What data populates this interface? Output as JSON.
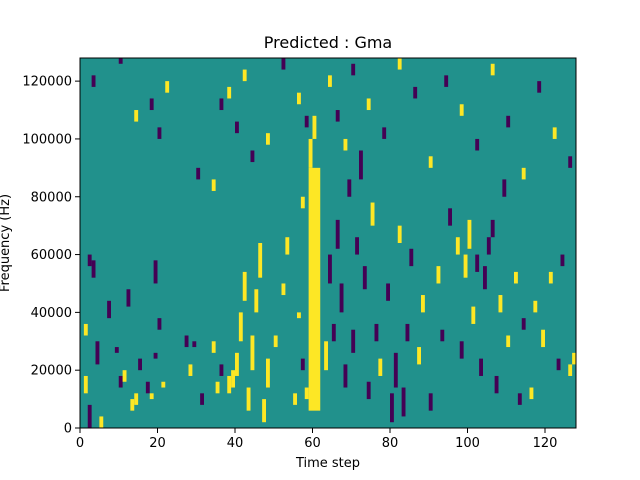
{
  "chart_data": {
    "type": "heatmap",
    "title": "Predicted : Gma",
    "xlabel": "Time step",
    "ylabel": "Frequency (Hz)",
    "xlim": [
      0,
      128
    ],
    "ylim": [
      0,
      128000
    ],
    "xticks": [
      0,
      20,
      40,
      60,
      80,
      100,
      120
    ],
    "yticks": [
      0,
      20000,
      40000,
      60000,
      80000,
      100000,
      120000
    ],
    "xtick_labels": [
      "0",
      "20",
      "40",
      "60",
      "80",
      "100",
      "120"
    ],
    "ytick_labels": [
      "0",
      "20000",
      "40000",
      "60000",
      "80000",
      "100000",
      "120000"
    ],
    "grid": false,
    "legend": "none",
    "colors": {
      "background_value": "#21918c",
      "high_value": "#fde725",
      "low_value": "#440154"
    },
    "time_steps": 128,
    "freq_bins": 128,
    "band_structure": {
      "strong_high_band_time": [
        59,
        62
      ],
      "strong_high_band_freq_range": [
        6000,
        90000
      ],
      "dense_low_cluster_time": [
        64,
        84
      ],
      "dense_high_cluster_time": [
        36,
        48
      ]
    },
    "nonbackground_cells": [
      {
        "t": 2,
        "f_range": [
          0,
          8000
        ],
        "v": "low"
      },
      {
        "t": 5,
        "f_range": [
          0,
          4000
        ],
        "v": "high"
      },
      {
        "t": 1,
        "f_range": [
          12000,
          18000
        ],
        "v": "high"
      },
      {
        "t": 4,
        "f_range": [
          22000,
          30000
        ],
        "v": "low"
      },
      {
        "t": 1,
        "f_range": [
          32000,
          36000
        ],
        "v": "high"
      },
      {
        "t": 3,
        "f_range": [
          52000,
          58000
        ],
        "v": "low"
      },
      {
        "t": 7,
        "f_range": [
          38000,
          44000
        ],
        "v": "low"
      },
      {
        "t": 2,
        "f_range": [
          56000,
          60000
        ],
        "v": "low"
      },
      {
        "t": 9,
        "f_range": [
          26000,
          28000
        ],
        "v": "low"
      },
      {
        "t": 10,
        "f_range": [
          14000,
          18000
        ],
        "v": "low"
      },
      {
        "t": 11,
        "f_range": [
          16000,
          20000
        ],
        "v": "high"
      },
      {
        "t": 12,
        "f_range": [
          42000,
          48000
        ],
        "v": "low"
      },
      {
        "t": 13,
        "f_range": [
          6000,
          10000
        ],
        "v": "high"
      },
      {
        "t": 14,
        "f_range": [
          8000,
          12000
        ],
        "v": "high"
      },
      {
        "t": 15,
        "f_range": [
          20000,
          24000
        ],
        "v": "low"
      },
      {
        "t": 17,
        "f_range": [
          12000,
          16000
        ],
        "v": "low"
      },
      {
        "t": 18,
        "f_range": [
          10000,
          12000
        ],
        "v": "high"
      },
      {
        "t": 19,
        "f_range": [
          24000,
          26000
        ],
        "v": "low"
      },
      {
        "t": 19,
        "f_range": [
          50000,
          58000
        ],
        "v": "low"
      },
      {
        "t": 20,
        "f_range": [
          34000,
          38000
        ],
        "v": "low"
      },
      {
        "t": 21,
        "f_range": [
          14000,
          16000
        ],
        "v": "high"
      },
      {
        "t": 27,
        "f_range": [
          28000,
          32000
        ],
        "v": "low"
      },
      {
        "t": 28,
        "f_range": [
          18000,
          22000
        ],
        "v": "high"
      },
      {
        "t": 29,
        "f_range": [
          28000,
          30000
        ],
        "v": "low"
      },
      {
        "t": 31,
        "f_range": [
          8000,
          12000
        ],
        "v": "low"
      },
      {
        "t": 34,
        "f_range": [
          26000,
          30000
        ],
        "v": "high"
      },
      {
        "t": 35,
        "f_range": [
          12000,
          16000
        ],
        "v": "high"
      },
      {
        "t": 36,
        "f_range": [
          18000,
          22000
        ],
        "v": "low"
      },
      {
        "t": 38,
        "f_range": [
          12000,
          18000
        ],
        "v": "high"
      },
      {
        "t": 39,
        "f_range": [
          14000,
          20000
        ],
        "v": "high"
      },
      {
        "t": 40,
        "f_range": [
          18000,
          26000
        ],
        "v": "high"
      },
      {
        "t": 41,
        "f_range": [
          30000,
          40000
        ],
        "v": "high"
      },
      {
        "t": 42,
        "f_range": [
          44000,
          54000
        ],
        "v": "high"
      },
      {
        "t": 43,
        "f_range": [
          6000,
          14000
        ],
        "v": "high"
      },
      {
        "t": 44,
        "f_range": [
          20000,
          32000
        ],
        "v": "high"
      },
      {
        "t": 45,
        "f_range": [
          40000,
          48000
        ],
        "v": "high"
      },
      {
        "t": 46,
        "f_range": [
          52000,
          64000
        ],
        "v": "high"
      },
      {
        "t": 47,
        "f_range": [
          2000,
          10000
        ],
        "v": "high"
      },
      {
        "t": 48,
        "f_range": [
          14000,
          24000
        ],
        "v": "high"
      },
      {
        "t": 50,
        "f_range": [
          28000,
          32000
        ],
        "v": "high"
      },
      {
        "t": 52,
        "f_range": [
          46000,
          50000
        ],
        "v": "high"
      },
      {
        "t": 53,
        "f_range": [
          60000,
          66000
        ],
        "v": "high"
      },
      {
        "t": 55,
        "f_range": [
          8000,
          12000
        ],
        "v": "high"
      },
      {
        "t": 56,
        "f_range": [
          38000,
          40000
        ],
        "v": "high"
      },
      {
        "t": 57,
        "f_range": [
          20000,
          24000
        ],
        "v": "low"
      },
      {
        "t": 57,
        "f_range": [
          76000,
          80000
        ],
        "v": "high"
      },
      {
        "t": 58,
        "f_range": [
          10000,
          14000
        ],
        "v": "high"
      },
      {
        "t": 59,
        "f_range": [
          90000,
          100000
        ],
        "v": "high"
      },
      {
        "t": 60,
        "f_range": [
          100000,
          108000
        ],
        "v": "high"
      },
      {
        "t": 63,
        "f_range": [
          20000,
          30000
        ],
        "v": "high"
      },
      {
        "t": 64,
        "f_range": [
          50000,
          60000
        ],
        "v": "low"
      },
      {
        "t": 65,
        "f_range": [
          30000,
          36000
        ],
        "v": "low"
      },
      {
        "t": 66,
        "f_range": [
          62000,
          72000
        ],
        "v": "low"
      },
      {
        "t": 67,
        "f_range": [
          40000,
          50000
        ],
        "v": "low"
      },
      {
        "t": 68,
        "f_range": [
          14000,
          22000
        ],
        "v": "low"
      },
      {
        "t": 69,
        "f_range": [
          80000,
          86000
        ],
        "v": "low"
      },
      {
        "t": 70,
        "f_range": [
          26000,
          34000
        ],
        "v": "low"
      },
      {
        "t": 71,
        "f_range": [
          60000,
          66000
        ],
        "v": "low"
      },
      {
        "t": 72,
        "f_range": [
          86000,
          96000
        ],
        "v": "low"
      },
      {
        "t": 73,
        "f_range": [
          48000,
          56000
        ],
        "v": "low"
      },
      {
        "t": 74,
        "f_range": [
          10000,
          16000
        ],
        "v": "low"
      },
      {
        "t": 75,
        "f_range": [
          70000,
          78000
        ],
        "v": "high"
      },
      {
        "t": 76,
        "f_range": [
          30000,
          36000
        ],
        "v": "low"
      },
      {
        "t": 77,
        "f_range": [
          18000,
          24000
        ],
        "v": "high"
      },
      {
        "t": 79,
        "f_range": [
          44000,
          50000
        ],
        "v": "low"
      },
      {
        "t": 80,
        "f_range": [
          2000,
          12000
        ],
        "v": "low"
      },
      {
        "t": 81,
        "f_range": [
          14000,
          26000
        ],
        "v": "low"
      },
      {
        "t": 82,
        "f_range": [
          64000,
          70000
        ],
        "v": "high"
      },
      {
        "t": 83,
        "f_range": [
          4000,
          14000
        ],
        "v": "low"
      },
      {
        "t": 84,
        "f_range": [
          30000,
          36000
        ],
        "v": "low"
      },
      {
        "t": 85,
        "f_range": [
          56000,
          62000
        ],
        "v": "low"
      },
      {
        "t": 87,
        "f_range": [
          22000,
          28000
        ],
        "v": "high"
      },
      {
        "t": 88,
        "f_range": [
          40000,
          46000
        ],
        "v": "high"
      },
      {
        "t": 90,
        "f_range": [
          6000,
          12000
        ],
        "v": "low"
      },
      {
        "t": 92,
        "f_range": [
          50000,
          56000
        ],
        "v": "high"
      },
      {
        "t": 93,
        "f_range": [
          30000,
          34000
        ],
        "v": "low"
      },
      {
        "t": 95,
        "f_range": [
          70000,
          76000
        ],
        "v": "low"
      },
      {
        "t": 97,
        "f_range": [
          60000,
          66000
        ],
        "v": "high"
      },
      {
        "t": 98,
        "f_range": [
          24000,
          30000
        ],
        "v": "low"
      },
      {
        "t": 99,
        "f_range": [
          52000,
          60000
        ],
        "v": "high"
      },
      {
        "t": 100,
        "f_range": [
          62000,
          72000
        ],
        "v": "high"
      },
      {
        "t": 101,
        "f_range": [
          36000,
          42000
        ],
        "v": "high"
      },
      {
        "t": 102,
        "f_range": [
          54000,
          60000
        ],
        "v": "low"
      },
      {
        "t": 103,
        "f_range": [
          18000,
          24000
        ],
        "v": "low"
      },
      {
        "t": 104,
        "f_range": [
          48000,
          56000
        ],
        "v": "low"
      },
      {
        "t": 105,
        "f_range": [
          60000,
          66000
        ],
        "v": "low"
      },
      {
        "t": 106,
        "f_range": [
          66000,
          72000
        ],
        "v": "low"
      },
      {
        "t": 107,
        "f_range": [
          12000,
          18000
        ],
        "v": "low"
      },
      {
        "t": 108,
        "f_range": [
          40000,
          46000
        ],
        "v": "high"
      },
      {
        "t": 109,
        "f_range": [
          80000,
          86000
        ],
        "v": "low"
      },
      {
        "t": 110,
        "f_range": [
          28000,
          32000
        ],
        "v": "high"
      },
      {
        "t": 112,
        "f_range": [
          50000,
          54000
        ],
        "v": "high"
      },
      {
        "t": 113,
        "f_range": [
          8000,
          12000
        ],
        "v": "low"
      },
      {
        "t": 114,
        "f_range": [
          34000,
          38000
        ],
        "v": "low"
      },
      {
        "t": 116,
        "f_range": [
          10000,
          14000
        ],
        "v": "high"
      },
      {
        "t": 117,
        "f_range": [
          40000,
          44000
        ],
        "v": "high"
      },
      {
        "t": 119,
        "f_range": [
          28000,
          34000
        ],
        "v": "high"
      },
      {
        "t": 121,
        "f_range": [
          50000,
          54000
        ],
        "v": "high"
      },
      {
        "t": 123,
        "f_range": [
          20000,
          24000
        ],
        "v": "low"
      },
      {
        "t": 124,
        "f_range": [
          56000,
          60000
        ],
        "v": "low"
      },
      {
        "t": 126,
        "f_range": [
          18000,
          22000
        ],
        "v": "high"
      },
      {
        "t": 127,
        "f_range": [
          22000,
          26000
        ],
        "v": "high"
      },
      {
        "t": 3,
        "f_range": [
          118000,
          122000
        ],
        "v": "low"
      },
      {
        "t": 10,
        "f_range": [
          126000,
          128000
        ],
        "v": "low"
      },
      {
        "t": 14,
        "f_range": [
          106000,
          110000
        ],
        "v": "high"
      },
      {
        "t": 18,
        "f_range": [
          110000,
          114000
        ],
        "v": "low"
      },
      {
        "t": 20,
        "f_range": [
          100000,
          104000
        ],
        "v": "low"
      },
      {
        "t": 22,
        "f_range": [
          116000,
          120000
        ],
        "v": "high"
      },
      {
        "t": 30,
        "f_range": [
          86000,
          90000
        ],
        "v": "low"
      },
      {
        "t": 34,
        "f_range": [
          82000,
          86000
        ],
        "v": "high"
      },
      {
        "t": 36,
        "f_range": [
          110000,
          114000
        ],
        "v": "low"
      },
      {
        "t": 38,
        "f_range": [
          114000,
          118000
        ],
        "v": "high"
      },
      {
        "t": 40,
        "f_range": [
          102000,
          106000
        ],
        "v": "low"
      },
      {
        "t": 42,
        "f_range": [
          120000,
          124000
        ],
        "v": "high"
      },
      {
        "t": 44,
        "f_range": [
          92000,
          96000
        ],
        "v": "low"
      },
      {
        "t": 48,
        "f_range": [
          98000,
          102000
        ],
        "v": "high"
      },
      {
        "t": 52,
        "f_range": [
          124000,
          128000
        ],
        "v": "low"
      },
      {
        "t": 56,
        "f_range": [
          112000,
          116000
        ],
        "v": "high"
      },
      {
        "t": 58,
        "f_range": [
          104000,
          108000
        ],
        "v": "low"
      },
      {
        "t": 64,
        "f_range": [
          118000,
          122000
        ],
        "v": "high"
      },
      {
        "t": 66,
        "f_range": [
          106000,
          110000
        ],
        "v": "low"
      },
      {
        "t": 68,
        "f_range": [
          96000,
          100000
        ],
        "v": "high"
      },
      {
        "t": 70,
        "f_range": [
          122000,
          126000
        ],
        "v": "low"
      },
      {
        "t": 74,
        "f_range": [
          110000,
          114000
        ],
        "v": "high"
      },
      {
        "t": 78,
        "f_range": [
          100000,
          104000
        ],
        "v": "low"
      },
      {
        "t": 82,
        "f_range": [
          124000,
          128000
        ],
        "v": "high"
      },
      {
        "t": 86,
        "f_range": [
          114000,
          118000
        ],
        "v": "low"
      },
      {
        "t": 90,
        "f_range": [
          90000,
          94000
        ],
        "v": "high"
      },
      {
        "t": 94,
        "f_range": [
          118000,
          122000
        ],
        "v": "low"
      },
      {
        "t": 98,
        "f_range": [
          108000,
          112000
        ],
        "v": "high"
      },
      {
        "t": 102,
        "f_range": [
          96000,
          100000
        ],
        "v": "low"
      },
      {
        "t": 106,
        "f_range": [
          122000,
          126000
        ],
        "v": "high"
      },
      {
        "t": 110,
        "f_range": [
          104000,
          108000
        ],
        "v": "low"
      },
      {
        "t": 114,
        "f_range": [
          86000,
          90000
        ],
        "v": "high"
      },
      {
        "t": 118,
        "f_range": [
          116000,
          120000
        ],
        "v": "low"
      },
      {
        "t": 122,
        "f_range": [
          100000,
          104000
        ],
        "v": "high"
      },
      {
        "t": 126,
        "f_range": [
          90000,
          94000
        ],
        "v": "low"
      }
    ]
  }
}
